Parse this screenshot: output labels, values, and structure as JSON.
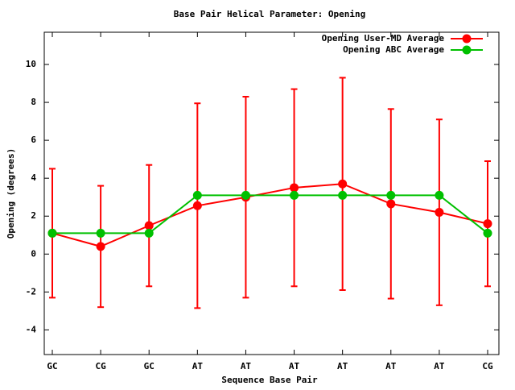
{
  "chart_data": {
    "type": "line",
    "title": "Base Pair Helical Parameter: Opening",
    "x_label": "Sequence Base Pair",
    "y_label": "Opening (degrees)",
    "categories": [
      "GC",
      "CG",
      "GC",
      "AT",
      "AT",
      "AT",
      "AT",
      "AT",
      "AT",
      "CG"
    ],
    "series": [
      {
        "name": "Opening User-MD Average",
        "color": "#ff0000",
        "values": [
          1.1,
          0.4,
          1.5,
          2.55,
          3.0,
          3.5,
          3.7,
          2.65,
          2.2,
          1.6
        ],
        "errors": [
          3.4,
          3.2,
          3.2,
          5.4,
          5.3,
          5.2,
          5.6,
          5.0,
          4.9,
          3.3
        ]
      },
      {
        "name": "Opening ABC Average",
        "color": "#00c000",
        "values": [
          1.1,
          1.1,
          1.1,
          3.1,
          3.1,
          3.1,
          3.1,
          3.1,
          3.1,
          1.1
        ]
      }
    ],
    "ylim": [
      -5.3,
      11.7
    ],
    "yticks": [
      -4,
      -2,
      0,
      2,
      4,
      6,
      8,
      10
    ],
    "legend": "upper right"
  }
}
